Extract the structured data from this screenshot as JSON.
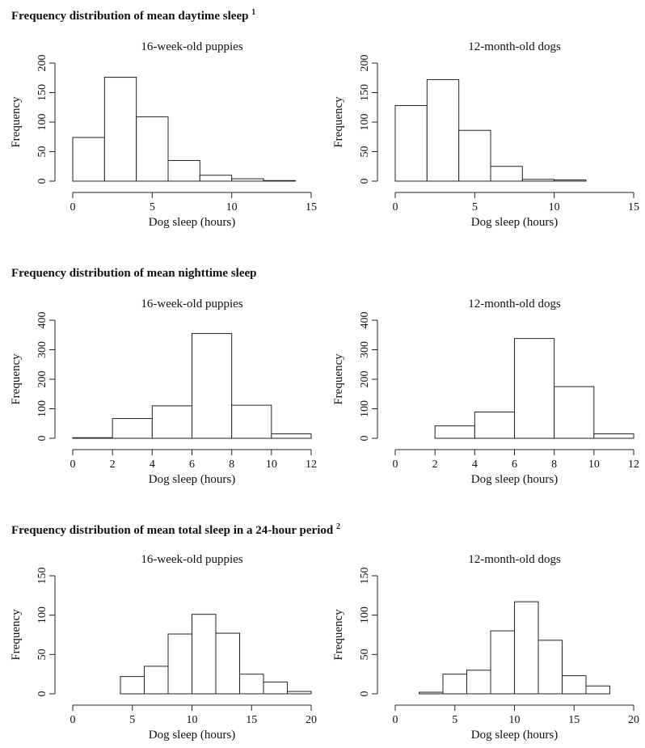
{
  "sections": [
    {
      "title": "Frequency distribution of mean daytime sleep",
      "note": "1"
    },
    {
      "title": "Frequency distribution of mean nighttime sleep",
      "note": ""
    },
    {
      "title": "Frequency distribution of mean total sleep in a 24-hour period",
      "note": "2"
    }
  ],
  "chart_data": [
    {
      "type": "bar",
      "section": 0,
      "title": "16-week-old puppies",
      "xlabel": "Dog sleep (hours)",
      "ylabel": "Frequency",
      "xlim": [
        0,
        15
      ],
      "xticks": [
        0,
        5,
        10,
        15
      ],
      "ylim": [
        0,
        200
      ],
      "yticks": [
        0,
        50,
        100,
        150,
        200
      ],
      "bin_edges": [
        0,
        2,
        4,
        6,
        8,
        10,
        12,
        14
      ],
      "values": [
        74,
        176,
        109,
        35,
        10,
        4,
        1
      ]
    },
    {
      "type": "bar",
      "section": 0,
      "title": "12-month-old dogs",
      "xlabel": "Dog sleep (hours)",
      "ylabel": "Frequency",
      "xlim": [
        0,
        15
      ],
      "xticks": [
        0,
        5,
        10,
        15
      ],
      "ylim": [
        0,
        200
      ],
      "yticks": [
        0,
        50,
        100,
        150,
        200
      ],
      "bin_edges": [
        0,
        2,
        4,
        6,
        8,
        10,
        12
      ],
      "values": [
        128,
        172,
        86,
        25,
        3,
        2
      ]
    },
    {
      "type": "bar",
      "section": 1,
      "title": "16-week-old puppies",
      "xlabel": "Dog sleep (hours)",
      "ylabel": "Frequency",
      "xlim": [
        0,
        12
      ],
      "xticks": [
        0,
        2,
        4,
        6,
        8,
        10,
        12
      ],
      "ylim": [
        0,
        400
      ],
      "yticks": [
        0,
        100,
        200,
        300,
        400
      ],
      "bin_edges": [
        0,
        2,
        4,
        6,
        8,
        10,
        12
      ],
      "values": [
        2,
        67,
        110,
        355,
        112,
        15
      ]
    },
    {
      "type": "bar",
      "section": 1,
      "title": "12-month-old dogs",
      "xlabel": "Dog sleep (hours)",
      "ylabel": "Frequency",
      "xlim": [
        0,
        12
      ],
      "xticks": [
        0,
        2,
        4,
        6,
        8,
        10,
        12
      ],
      "ylim": [
        0,
        400
      ],
      "yticks": [
        0,
        100,
        200,
        300,
        400
      ],
      "bin_edges": [
        2,
        4,
        6,
        8,
        10,
        12
      ],
      "values": [
        42,
        89,
        338,
        175,
        15
      ]
    },
    {
      "type": "bar",
      "section": 2,
      "title": "16-week-old puppies",
      "xlabel": "Dog sleep (hours)",
      "ylabel": "Frequency",
      "xlim": [
        0,
        20
      ],
      "xticks": [
        0,
        5,
        10,
        15,
        20
      ],
      "ylim": [
        0,
        150
      ],
      "yticks": [
        0,
        50,
        100,
        150
      ],
      "bin_edges": [
        4,
        6,
        8,
        10,
        12,
        14,
        16,
        18,
        20
      ],
      "values": [
        22,
        35,
        76,
        101,
        77,
        25,
        15,
        3
      ]
    },
    {
      "type": "bar",
      "section": 2,
      "title": "12-month-old dogs",
      "xlabel": "Dog sleep (hours)",
      "ylabel": "Frequency",
      "xlim": [
        0,
        20
      ],
      "xticks": [
        0,
        5,
        10,
        15,
        20
      ],
      "ylim": [
        0,
        150
      ],
      "yticks": [
        0,
        50,
        100,
        150
      ],
      "bin_edges": [
        2,
        4,
        6,
        8,
        10,
        12,
        14,
        16,
        18
      ],
      "values": [
        2,
        25,
        30,
        80,
        117,
        68,
        23,
        10
      ]
    }
  ]
}
